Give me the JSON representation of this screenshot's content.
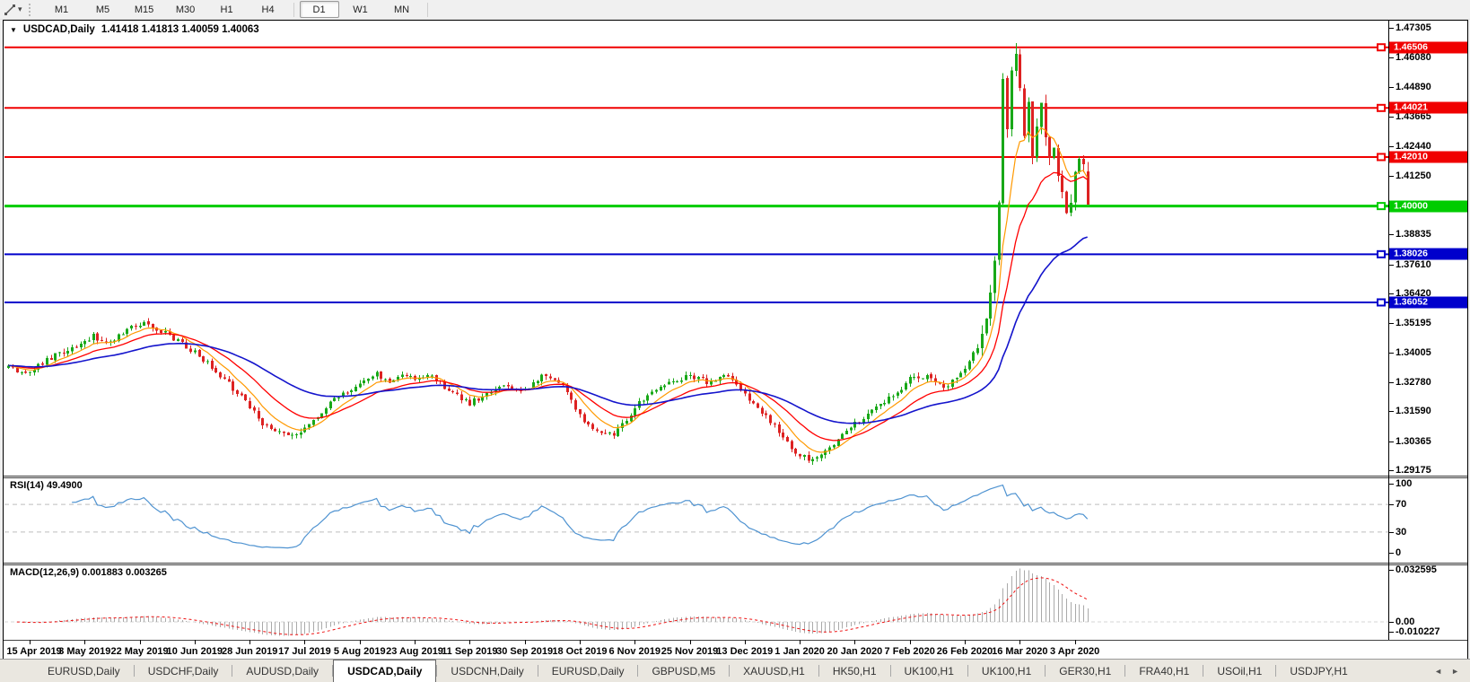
{
  "toolbar": {
    "timeframes": [
      "M1",
      "M5",
      "M15",
      "M30",
      "H1",
      "H4",
      "D1",
      "W1",
      "MN"
    ],
    "active_timeframe": "D1",
    "dropdown_caret": "▾"
  },
  "header": {
    "collapse_icon": "▼",
    "symbol_label": "USDCAD,Daily",
    "ohlc_text": "1.41418 1.41813 1.40059 1.40063"
  },
  "chart_data": {
    "type": "candlestick",
    "symbol": "USDCAD",
    "timeframe": "Daily",
    "last_ohlc": {
      "open": 1.41418,
      "high": 1.41813,
      "low": 1.40059,
      "close": 1.40063
    },
    "y_axis": {
      "range_top": 1.47305,
      "range_bottom": 1.29175,
      "ticks": [
        "1.47305",
        "1.46080",
        "1.44890",
        "1.43665",
        "1.42440",
        "1.41250",
        "1.38835",
        "1.37610",
        "1.36420",
        "1.35195",
        "1.34005",
        "1.32780",
        "1.31590",
        "1.30365",
        "1.29175"
      ]
    },
    "x_axis": {
      "ticks": [
        "15 Apr 2019",
        "3 May 2019",
        "22 May 2019",
        "10 Jun 2019",
        "28 Jun 2019",
        "17 Jul 2019",
        "5 Aug 2019",
        "23 Aug 2019",
        "11 Sep 2019",
        "30 Sep 2019",
        "18 Oct 2019",
        "6 Nov 2019",
        "25 Nov 2019",
        "13 Dec 2019",
        "1 Jan 2020",
        "20 Jan 2020",
        "7 Feb 2020",
        "26 Feb 2020",
        "16 Mar 2020",
        "3 Apr 2020"
      ]
    },
    "horizontal_levels": [
      {
        "price": "1.46506",
        "color": "#f00000",
        "width": 2,
        "role": "resistance"
      },
      {
        "price": "1.44021",
        "color": "#f00000",
        "width": 2,
        "role": "resistance"
      },
      {
        "price": "1.42010",
        "color": "#f00000",
        "width": 2,
        "role": "resistance"
      },
      {
        "price": "1.40000",
        "color": "#00cc00",
        "width": 3,
        "role": "pivot"
      },
      {
        "price": "1.38026",
        "color": "#0000cc",
        "width": 2,
        "role": "support"
      },
      {
        "price": "1.36052",
        "color": "#0000cc",
        "width": 2,
        "role": "support"
      }
    ],
    "candles": {
      "count": 256,
      "up_color": "#18a818",
      "down_color": "#dd2222",
      "peak_high": 1.4668,
      "close_anchors": [
        [
          0,
          1.335
        ],
        [
          4,
          1.331
        ],
        [
          8,
          1.336
        ],
        [
          12,
          1.34
        ],
        [
          16,
          1.343
        ],
        [
          20,
          1.3465
        ],
        [
          24,
          1.344
        ],
        [
          28,
          1.35
        ],
        [
          32,
          1.3515
        ],
        [
          36,
          1.349
        ],
        [
          40,
          1.345
        ],
        [
          44,
          1.34
        ],
        [
          48,
          1.334
        ],
        [
          52,
          1.327
        ],
        [
          57,
          1.318
        ],
        [
          60,
          1.311
        ],
        [
          63,
          1.3075
        ],
        [
          66,
          1.3055
        ],
        [
          70,
          1.309
        ],
        [
          74,
          1.316
        ],
        [
          78,
          1.322
        ],
        [
          83,
          1.327
        ],
        [
          87,
          1.331
        ],
        [
          90,
          1.328
        ],
        [
          93,
          1.332
        ],
        [
          96,
          1.329
        ],
        [
          100,
          1.331
        ],
        [
          104,
          1.324
        ],
        [
          109,
          1.319
        ],
        [
          113,
          1.3235
        ],
        [
          117,
          1.3265
        ],
        [
          122,
          1.324
        ],
        [
          126,
          1.33
        ],
        [
          130,
          1.328
        ],
        [
          133,
          1.321
        ],
        [
          135,
          1.314
        ],
        [
          139,
          1.3075
        ],
        [
          143,
          1.306
        ],
        [
          146,
          1.312
        ],
        [
          148,
          1.318
        ],
        [
          152,
          1.324
        ],
        [
          156,
          1.328
        ],
        [
          161,
          1.3305
        ],
        [
          165,
          1.328
        ],
        [
          170,
          1.331
        ],
        [
          174,
          1.323
        ],
        [
          178,
          1.316
        ],
        [
          182,
          1.308
        ],
        [
          186,
          1.2985
        ],
        [
          190,
          1.2955
        ],
        [
          193,
          1.3
        ],
        [
          197,
          1.306
        ],
        [
          200,
          1.311
        ],
        [
          204,
          1.316
        ],
        [
          208,
          1.321
        ],
        [
          213,
          1.329
        ],
        [
          217,
          1.33
        ],
        [
          221,
          1.325
        ],
        [
          226,
          1.334
        ],
        [
          229,
          1.342
        ],
        [
          231,
          1.354
        ],
        [
          233,
          1.376
        ],
        [
          234,
          1.4
        ],
        [
          235,
          1.452
        ],
        [
          236,
          1.43
        ],
        [
          237,
          1.456
        ],
        [
          238,
          1.462
        ],
        [
          239,
          1.448
        ],
        [
          240,
          1.43
        ],
        [
          241,
          1.444
        ],
        [
          242,
          1.42
        ],
        [
          243,
          1.433
        ],
        [
          244,
          1.442
        ],
        [
          245,
          1.428
        ],
        [
          246,
          1.418
        ],
        [
          247,
          1.425
        ],
        [
          248,
          1.412
        ],
        [
          249,
          1.404
        ],
        [
          250,
          1.396
        ],
        [
          251,
          1.402
        ],
        [
          252,
          1.414
        ],
        [
          253,
          1.42
        ],
        [
          254,
          1.418
        ],
        [
          255,
          1.40063
        ]
      ]
    },
    "moving_averages": [
      {
        "name": "ma-fast",
        "period": 8,
        "color": "#ff9900",
        "width": 1.2
      },
      {
        "name": "ma-mid",
        "period": 18,
        "color": "#ff0000",
        "width": 1.3
      },
      {
        "name": "ma-slow",
        "period": 45,
        "color": "#1414cc",
        "width": 1.6
      }
    ],
    "indicators": {
      "rsi": {
        "label": "RSI(14) 49.4900",
        "period": 14,
        "value": 49.49,
        "color": "#4f93d1",
        "dashed_levels": [
          70,
          30
        ],
        "ticks": [
          "100",
          "70",
          "30",
          "0"
        ]
      },
      "macd": {
        "label": "MACD(12,26,9) 0.001883 0.003265",
        "fast": 12,
        "slow": 26,
        "signal": 9,
        "value": 0.001883,
        "signal_value": 0.003265,
        "histogram_color": "#aaaaaa",
        "signal_color": "#ee1111",
        "ticks": [
          "0.032595",
          "0.00",
          "-0.010227"
        ]
      }
    }
  },
  "tabs": {
    "scroll_left": "◄",
    "scroll_right": "►",
    "items": [
      {
        "label": "EURUSD,Daily",
        "active": false
      },
      {
        "label": "USDCHF,Daily",
        "active": false
      },
      {
        "label": "AUDUSD,Daily",
        "active": false
      },
      {
        "label": "USDCAD,Daily",
        "active": true
      },
      {
        "label": "USDCNH,Daily",
        "active": false
      },
      {
        "label": "EURUSD,Daily",
        "active": false
      },
      {
        "label": "GBPUSD,M5",
        "active": false
      },
      {
        "label": "XAUUSD,H1",
        "active": false
      },
      {
        "label": "HK50,H1",
        "active": false
      },
      {
        "label": "UK100,H1",
        "active": false
      },
      {
        "label": "UK100,H1",
        "active": false
      },
      {
        "label": "GER30,H1",
        "active": false
      },
      {
        "label": "FRA40,H1",
        "active": false
      },
      {
        "label": "USOil,H1",
        "active": false
      },
      {
        "label": "USDJPY,H1",
        "active": false
      }
    ]
  }
}
